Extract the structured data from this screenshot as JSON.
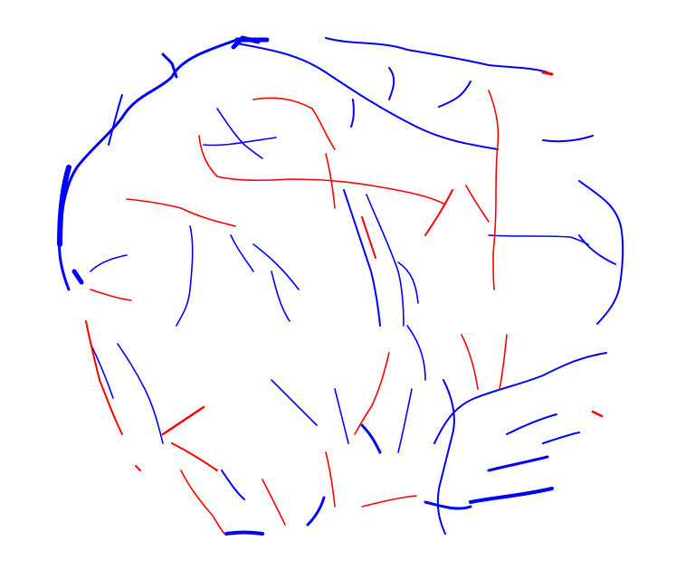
{
  "image": {
    "description_free": true,
    "colors": {
      "background": "#ffffff",
      "primary_vessels": "#0000ff",
      "secondary_vessels": "#ff0000"
    },
    "legend": []
  }
}
